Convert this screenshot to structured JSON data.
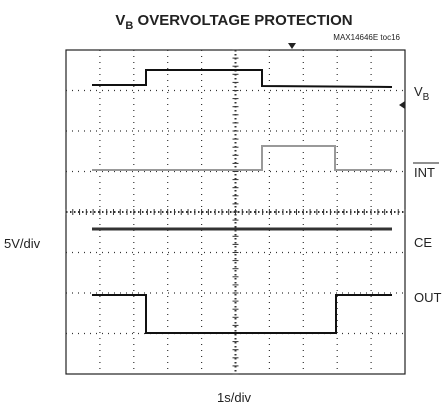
{
  "header": {
    "title": {
      "main": "V",
      "sub": "B",
      "rest": "OVERVOLTAGE PROTECTION"
    },
    "note": "MAX14646E toc16"
  },
  "axes": {
    "vertical_scale": "5V/div",
    "horizontal_scale": "1s/div"
  },
  "channels": [
    {
      "label": {
        "main": "V",
        "sub": "B"
      }
    },
    {
      "label": {
        "main": "INT"
      }
    },
    {
      "label": {
        "main": "CE"
      }
    },
    {
      "label": {
        "main": "OUT"
      }
    }
  ]
}
